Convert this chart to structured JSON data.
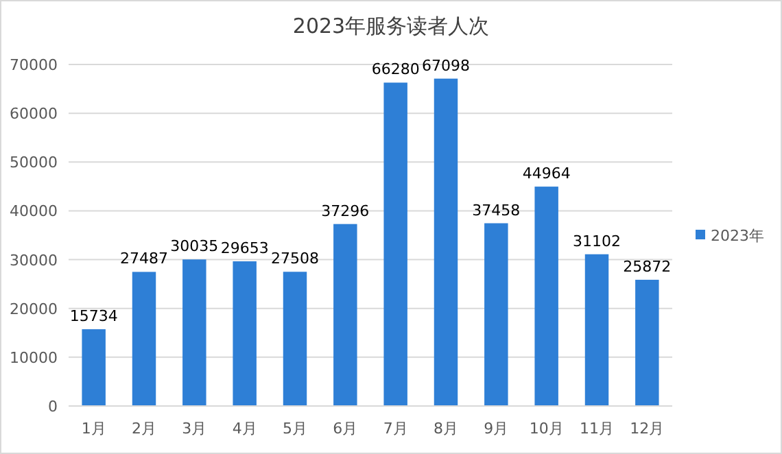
{
  "chart_data": {
    "type": "bar",
    "title": "2023年服务读者人次",
    "categories": [
      "1月",
      "2月",
      "3月",
      "4月",
      "5月",
      "6月",
      "7月",
      "8月",
      "9月",
      "10月",
      "11月",
      "12月"
    ],
    "series": [
      {
        "name": "2023年",
        "color": "#2e7fd6",
        "values": [
          15734,
          27487,
          30035,
          29653,
          27508,
          37296,
          66280,
          67098,
          37458,
          44964,
          31102,
          25872
        ]
      }
    ],
    "ylim": [
      0,
      70000
    ],
    "yticks": [
      0,
      10000,
      20000,
      30000,
      40000,
      50000,
      60000,
      70000
    ],
    "grid": "y",
    "legend": "right",
    "data_labels": true
  }
}
